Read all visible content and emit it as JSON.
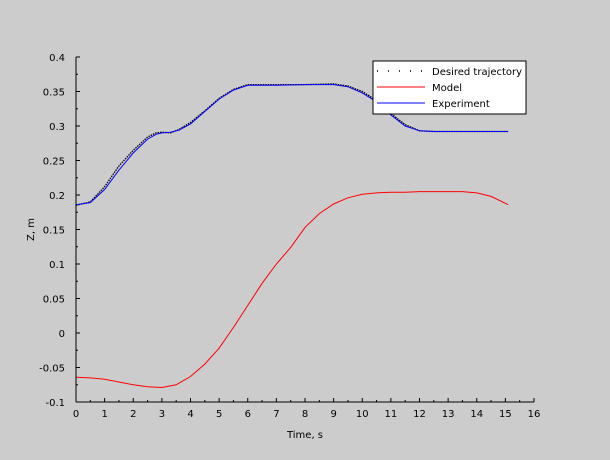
{
  "chart_data": {
    "type": "line",
    "title": "",
    "xlabel": "Time, s",
    "ylabel": "Z, m",
    "xlim": [
      0,
      16
    ],
    "ylim": [
      -0.1,
      0.4
    ],
    "xticks": [
      0,
      1,
      2,
      3,
      4,
      5,
      6,
      7,
      8,
      9,
      10,
      11,
      12,
      13,
      14,
      15,
      16
    ],
    "yticks": [
      -0.1,
      -0.05,
      0,
      0.05,
      0.1,
      0.15,
      0.2,
      0.25,
      0.3,
      0.35,
      0.4
    ],
    "ytick_labels": [
      "-0.1",
      "-0.05",
      "0",
      "0.05",
      "0.1",
      "0.15",
      "0.2",
      "0.25",
      "0.3",
      "0.35",
      "0.4"
    ],
    "grid": false,
    "legend_position": "top-right",
    "series": [
      {
        "name": "Desired trajectory",
        "color": "#000000",
        "style": "dotted",
        "x": [
          0,
          0.5,
          1,
          1.5,
          2,
          2.5,
          2.8,
          3.0,
          3.3,
          3.6,
          4,
          4.5,
          5,
          5.5,
          6,
          7,
          8,
          9,
          9.5,
          10,
          10.5,
          11,
          11.5,
          12,
          12.5,
          13,
          14,
          15.1
        ],
        "y": [
          0.185,
          0.19,
          0.212,
          0.242,
          0.265,
          0.284,
          0.29,
          0.291,
          0.29,
          0.295,
          0.305,
          0.322,
          0.34,
          0.353,
          0.36,
          0.36,
          0.36,
          0.361,
          0.358,
          0.35,
          0.337,
          0.318,
          0.302,
          0.293,
          0.292,
          0.292,
          0.292,
          0.292
        ]
      },
      {
        "name": "Model",
        "color": "#ff0000",
        "style": "solid",
        "x": [
          0,
          0.5,
          1,
          1.5,
          2,
          2.5,
          3,
          3.5,
          4,
          4.5,
          5,
          5.5,
          6,
          6.5,
          7,
          7.5,
          8,
          8.5,
          9,
          9.5,
          10,
          10.5,
          11,
          11.5,
          12,
          12.5,
          13,
          13.5,
          14,
          14.5,
          15.1
        ],
        "y": [
          -0.064,
          -0.065,
          -0.067,
          -0.071,
          -0.075,
          -0.078,
          -0.079,
          -0.075,
          -0.063,
          -0.045,
          -0.022,
          0.008,
          0.04,
          0.072,
          0.1,
          0.124,
          0.153,
          0.173,
          0.187,
          0.196,
          0.201,
          0.203,
          0.204,
          0.204,
          0.205,
          0.205,
          0.205,
          0.205,
          0.203,
          0.198,
          0.186
        ]
      },
      {
        "name": "Experiment",
        "color": "#0000ff",
        "style": "solid",
        "x": [
          0,
          0.5,
          1,
          1.5,
          2,
          2.5,
          2.8,
          3.0,
          3.3,
          3.6,
          4,
          4.5,
          5,
          5.5,
          6,
          7,
          8,
          9,
          9.5,
          10,
          10.5,
          11,
          11.5,
          12,
          12.5,
          13,
          14,
          15.1
        ],
        "y": [
          0.186,
          0.189,
          0.208,
          0.236,
          0.261,
          0.281,
          0.288,
          0.29,
          0.291,
          0.294,
          0.303,
          0.321,
          0.339,
          0.352,
          0.359,
          0.359,
          0.36,
          0.36,
          0.357,
          0.348,
          0.335,
          0.316,
          0.3,
          0.293,
          0.292,
          0.292,
          0.292,
          0.292
        ]
      }
    ]
  }
}
